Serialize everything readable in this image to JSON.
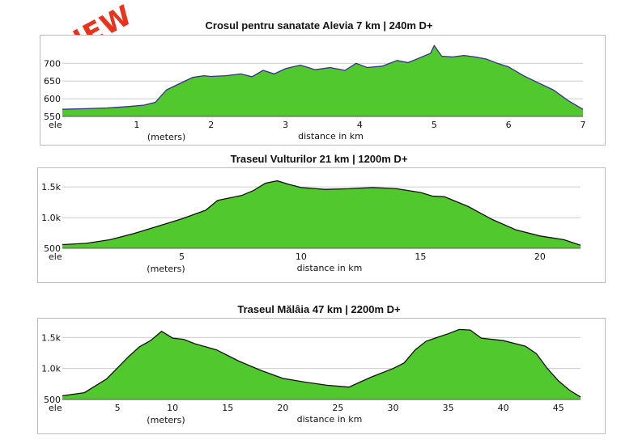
{
  "badge": "NEW",
  "colors": {
    "fill": "#52c82f",
    "line": "#111111",
    "line_first": "#3a2d8f",
    "grid": "#cccccc",
    "badge": "#e8341c"
  },
  "chart_data": [
    {
      "type": "area",
      "title": "Crosul pentru sanatate Alevia  7 km | 240m D+",
      "xlabel": "distance in km",
      "ylabel": "ele",
      "yunit": "(meters)",
      "xlim": [
        0,
        7
      ],
      "ylim": [
        550,
        760
      ],
      "xticks": [
        1,
        2,
        3,
        4,
        5,
        6,
        7
      ],
      "yticks": [
        550,
        600,
        650,
        700
      ],
      "ytick_labels": [
        "550",
        "600",
        "650",
        "700"
      ],
      "grid": true,
      "x": [
        0,
        0.3,
        0.6,
        0.9,
        1.1,
        1.25,
        1.4,
        1.6,
        1.75,
        1.9,
        2.0,
        2.2,
        2.4,
        2.55,
        2.7,
        2.85,
        3.0,
        3.2,
        3.4,
        3.6,
        3.8,
        3.95,
        4.1,
        4.3,
        4.5,
        4.65,
        4.8,
        4.95,
        5.0,
        5.1,
        5.25,
        5.4,
        5.55,
        5.7,
        5.85,
        6.0,
        6.2,
        6.4,
        6.6,
        6.8,
        7.0
      ],
      "y": [
        570,
        572,
        574,
        578,
        582,
        590,
        625,
        645,
        660,
        665,
        663,
        665,
        670,
        662,
        680,
        670,
        685,
        695,
        682,
        688,
        680,
        700,
        688,
        692,
        708,
        702,
        715,
        728,
        750,
        720,
        718,
        722,
        718,
        712,
        700,
        690,
        665,
        645,
        625,
        595,
        570
      ]
    },
    {
      "type": "area",
      "title": "Traseul Vulturilor  21 km | 1200m D+",
      "xlabel": "distance in km",
      "ylabel": "ele",
      "yunit": "(meters)",
      "xlim": [
        0,
        21.7
      ],
      "ylim": [
        500,
        1700
      ],
      "xticks": [
        5,
        10,
        15,
        20
      ],
      "yticks": [
        500,
        1000,
        1500
      ],
      "ytick_labels": [
        "500",
        "1.0k",
        "1.5k"
      ],
      "grid": true,
      "x": [
        0,
        1,
        2,
        3,
        4,
        5,
        6,
        6.5,
        7,
        7.5,
        8,
        8.5,
        9,
        9.5,
        10,
        11,
        12,
        13,
        14,
        15,
        15.5,
        16,
        17,
        18,
        19,
        20,
        21,
        21.7
      ],
      "y": [
        560,
        580,
        640,
        740,
        860,
        980,
        1120,
        1280,
        1320,
        1360,
        1440,
        1560,
        1600,
        1540,
        1490,
        1460,
        1470,
        1490,
        1470,
        1410,
        1350,
        1340,
        1180,
        970,
        800,
        700,
        640,
        550
      ]
    },
    {
      "type": "area",
      "title": "Traseul Mălâia  47 km | 2200m D+",
      "xlabel": "distance in km",
      "ylabel": "ele",
      "yunit": "(meters)",
      "xlim": [
        0,
        47
      ],
      "ylim": [
        500,
        1700
      ],
      "xticks": [
        5,
        10,
        15,
        20,
        25,
        30,
        35,
        40,
        45
      ],
      "yticks": [
        500,
        1000,
        1500
      ],
      "ytick_labels": [
        "500",
        "1.0k",
        "1.5k"
      ],
      "grid": true,
      "x": [
        0,
        2,
        4,
        5,
        6,
        7,
        8,
        9,
        10,
        11,
        12,
        14,
        16,
        18,
        20,
        22,
        24,
        26,
        27,
        28,
        30,
        31,
        32,
        33,
        34,
        35,
        36,
        37,
        38,
        40,
        42,
        43,
        44,
        45,
        46,
        47
      ],
      "y": [
        560,
        610,
        830,
        1010,
        1190,
        1350,
        1450,
        1600,
        1490,
        1470,
        1400,
        1300,
        1120,
        970,
        840,
        780,
        730,
        700,
        780,
        860,
        1000,
        1090,
        1300,
        1440,
        1500,
        1560,
        1630,
        1620,
        1490,
        1450,
        1360,
        1240,
        1000,
        800,
        650,
        540
      ]
    }
  ]
}
